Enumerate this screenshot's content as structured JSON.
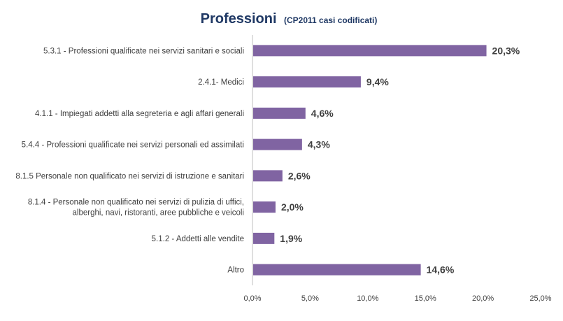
{
  "chart_data": {
    "type": "bar",
    "orientation": "horizontal",
    "title": "Professioni",
    "subtitle": "(CP2011 casi codificati)",
    "categories": [
      [
        "5.3.1 - Professioni qualificate nei servizi sanitari e sociali"
      ],
      [
        "2.4.1- Medici"
      ],
      [
        "4.1.1 - Impiegati addetti alla segreteria e agli affari generali"
      ],
      [
        "5.4.4 - Professioni qualificate nei servizi personali ed assimilati"
      ],
      [
        "8.1.5 Personale non qualificato nei servizi di istruzione e sanitari"
      ],
      [
        "8.1.4 - Personale non qualificato nei servizi di pulizia di uffici,",
        "alberghi, navi, ristoranti, aree pubbliche e veicoli"
      ],
      [
        "5.1.2 - Addetti alle vendite"
      ],
      [
        "Altro"
      ]
    ],
    "values": [
      20.3,
      9.4,
      4.6,
      4.3,
      2.6,
      2.0,
      1.9,
      14.6
    ],
    "value_labels": [
      "20,3%",
      "9,4%",
      "4,6%",
      "4,3%",
      "2,6%",
      "2,0%",
      "1,9%",
      "14,6%"
    ],
    "xlim": [
      0,
      25
    ],
    "xticks": [
      0,
      5,
      10,
      15,
      20,
      25
    ],
    "xtick_labels": [
      "0,0%",
      "5,0%",
      "10,0%",
      "15,0%",
      "20,0%",
      "25,0%"
    ],
    "grid": false,
    "legend": "none",
    "colors": {
      "bar": "#8064a2",
      "title": "#1f3864",
      "axis": "#bfbfbf",
      "text": "#404040"
    }
  }
}
